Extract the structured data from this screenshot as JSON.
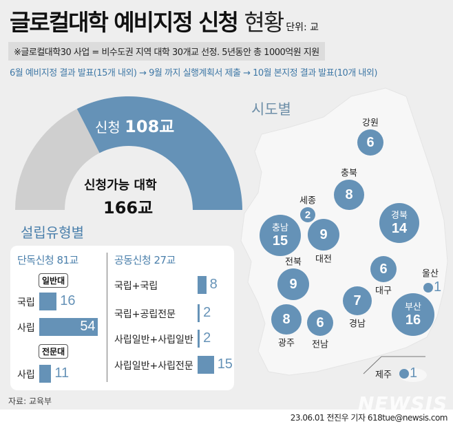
{
  "header": {
    "title_bold": "글로컬대학 예비지정 신청",
    "title_light": "현황",
    "unit": "단위: 교",
    "note": "※글로컬대학30 사업 = 비수도권 지역 대학 30개교 선정. 5년동안 총 1000억원 지원",
    "timeline": "6월 예비지정 결과 발표(15개 내외) → 9월 까지 실행계획서 제출 → 10월 본지정 결과 발표(10개 내외)"
  },
  "donut": {
    "applied_label": "신청",
    "applied_value": "108교",
    "applied": 108,
    "eligible_label": "신청가능 대학",
    "eligible_value": "166교",
    "eligible": 166,
    "colors": {
      "applied": "#6592b7",
      "rest": "#cfcfcf"
    }
  },
  "by_type": {
    "title": "설립유형별",
    "solo": {
      "header": "단독신청 81교",
      "groups": [
        {
          "tag": "일반대",
          "rows": [
            {
              "label": "국립",
              "value": 16
            },
            {
              "label": "사립",
              "value": 54
            }
          ]
        },
        {
          "tag": "전문대",
          "rows": [
            {
              "label": "사립",
              "value": 11
            }
          ]
        }
      ]
    },
    "joint": {
      "header": "공동신청 27교",
      "rows": [
        {
          "label": "국립+국립",
          "value": 8
        },
        {
          "label": "국립+공립전문",
          "value": 2
        },
        {
          "label": "사립일반+사립일반",
          "value": 2
        },
        {
          "label": "사립일반+사립전문",
          "value": 15
        }
      ]
    }
  },
  "by_region": {
    "title": "시도별",
    "regions": [
      {
        "name": "강원",
        "value": 6
      },
      {
        "name": "충북",
        "value": 8
      },
      {
        "name": "세종",
        "value": 2
      },
      {
        "name": "경북",
        "value": 14
      },
      {
        "name": "충남",
        "value": 15
      },
      {
        "name": "대전",
        "value": 9
      },
      {
        "name": "전북",
        "value": 9
      },
      {
        "name": "대구",
        "value": 6
      },
      {
        "name": "울산",
        "value": 1
      },
      {
        "name": "부산",
        "value": 16
      },
      {
        "name": "경남",
        "value": 7
      },
      {
        "name": "광주",
        "value": 8
      },
      {
        "name": "전남",
        "value": 6
      },
      {
        "name": "제주",
        "value": 1
      }
    ]
  },
  "footer": {
    "source": "자료: 교육부",
    "credit": "23.06.01 전진우 기자 618tue@newsis.com",
    "watermark": "NEWSIS"
  }
}
